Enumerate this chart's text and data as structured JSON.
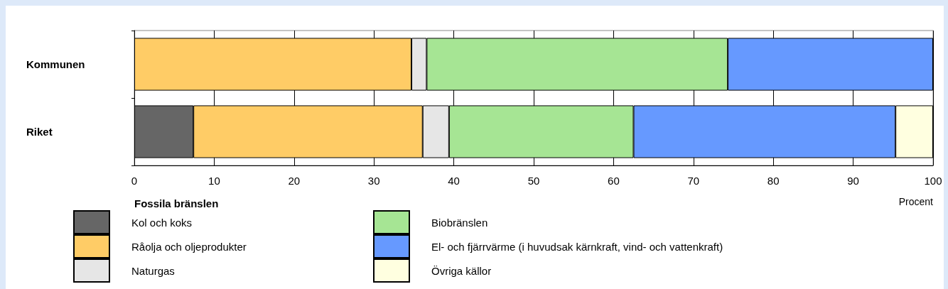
{
  "chart_data": {
    "type": "bar",
    "orientation": "horizontal",
    "stacked": true,
    "xlabel": "Procent",
    "legend_title": "Fossila bränslen",
    "legend": "bottom",
    "grid": "x",
    "categories": [
      "Kommunen",
      "Riket"
    ],
    "xlim": [
      0,
      100
    ],
    "xticks": [
      0,
      10,
      20,
      30,
      40,
      50,
      60,
      70,
      80,
      90,
      100
    ],
    "series": [
      {
        "name": "Kol och koks",
        "color": "#666666",
        "values": [
          null,
          7.4
        ]
      },
      {
        "name": "Råolja och oljeprodukter",
        "color": "#ffcc66",
        "values": [
          34.7,
          28.7
        ]
      },
      {
        "name": "Naturgas",
        "color": "#e6e6e6",
        "values": [
          1.9,
          3.3
        ]
      },
      {
        "name": "Biobränslen",
        "color": "#a6e594",
        "values": [
          37.7,
          23.1
        ]
      },
      {
        "name": "El- och fjärrvärme (i huvudsak kärnkraft, vind- och vattenkraft)",
        "color": "#6699ff",
        "values": [
          25.7,
          32.8
        ]
      },
      {
        "name": "Övriga källor",
        "color": "#ffffe0",
        "values": [
          null,
          4.7
        ]
      }
    ]
  }
}
